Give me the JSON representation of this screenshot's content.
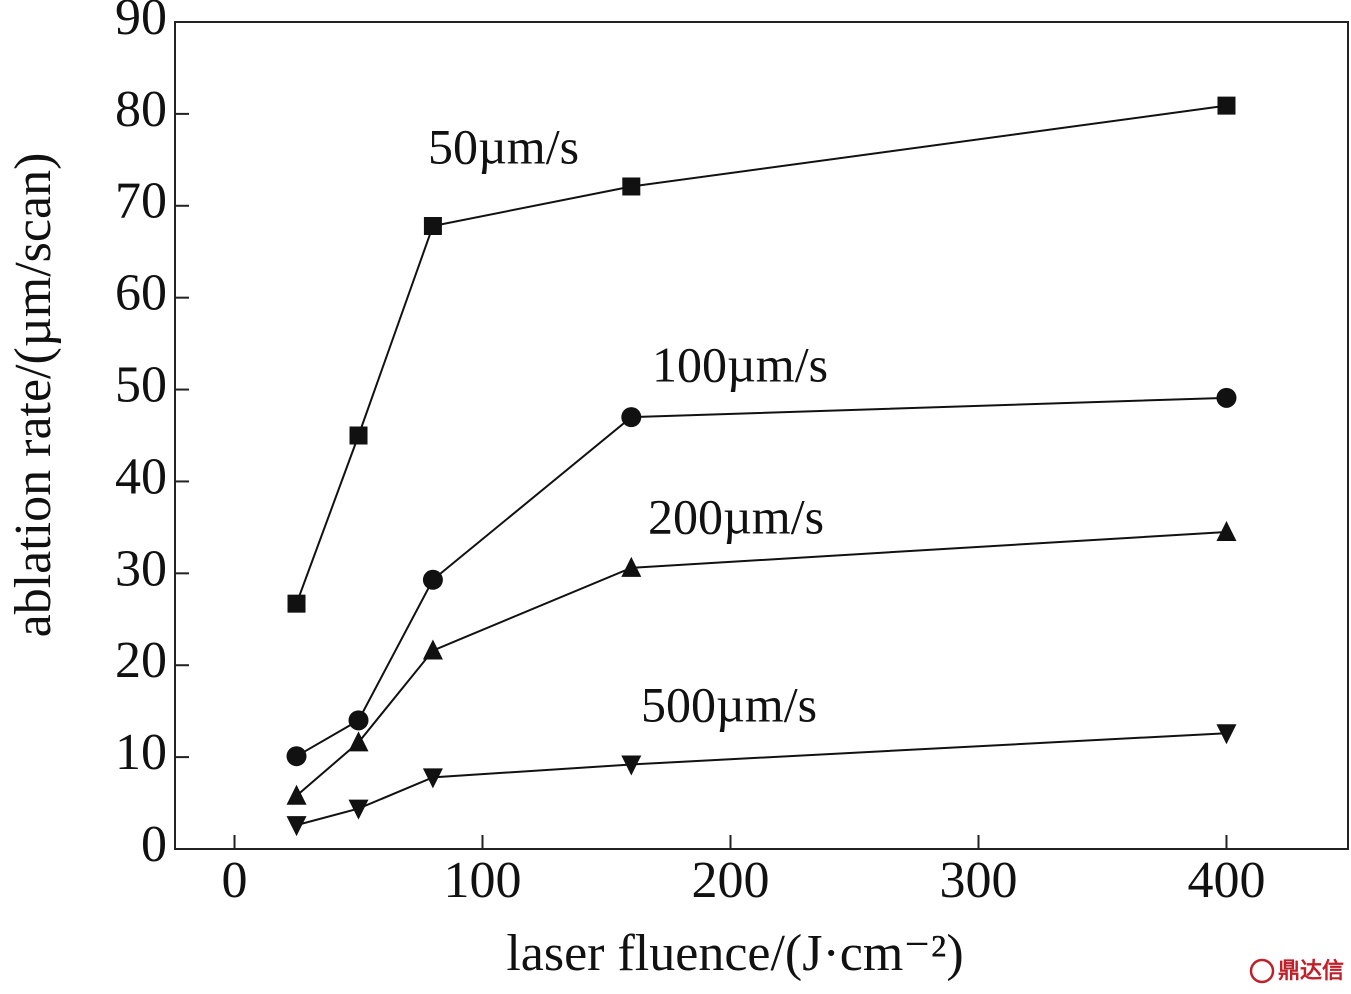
{
  "chart_data": {
    "type": "line",
    "xlabel": "laser fluence/(J·cm⁻²)",
    "ylabel": "ablation rate/(µm/scan)",
    "x": [
      25,
      50,
      80,
      160,
      400
    ],
    "series": [
      {
        "name": "50µm/s",
        "color": "#111111",
        "marker": "square",
        "values": [
          26.7,
          45,
          67.8,
          72.1,
          80.9
        ]
      },
      {
        "name": "100µm/s",
        "color": "#111111",
        "marker": "circle",
        "values": [
          10.1,
          14,
          29.3,
          47,
          49.1
        ]
      },
      {
        "name": "200µm/s",
        "color": "#111111",
        "marker": "triangle-up",
        "values": [
          5.8,
          11.6,
          21.6,
          30.6,
          34.5
        ]
      },
      {
        "name": "500µm/s",
        "color": "#111111",
        "marker": "triangle-down",
        "values": [
          2.6,
          4.4,
          7.8,
          9.2,
          12.6
        ]
      }
    ],
    "xlim": [
      -24,
      449
    ],
    "xticks": [
      0,
      100,
      200,
      300,
      400
    ],
    "ylim": [
      0,
      90
    ],
    "yticks": [
      0,
      10,
      20,
      30,
      40,
      50,
      60,
      70,
      80,
      90
    ],
    "grid": false,
    "watermark": "鼎达信"
  }
}
